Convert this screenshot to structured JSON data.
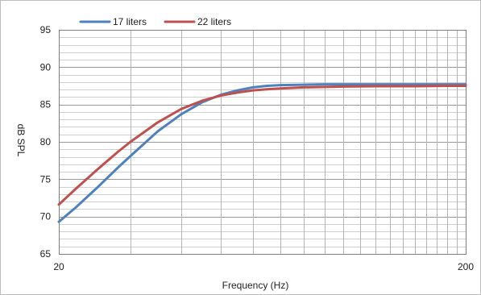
{
  "chart_data": {
    "type": "line",
    "xlabel": "Frequency (Hz)",
    "ylabel": "dB SPL",
    "x_scale": "log",
    "xlim": [
      20,
      200
    ],
    "ylim": [
      65,
      95
    ],
    "x_ticks": [
      "20",
      "200"
    ],
    "y_ticks": [
      "65",
      "70",
      "75",
      "80",
      "85",
      "90",
      "95"
    ],
    "grid": true,
    "legend_position": "top",
    "series": [
      {
        "name": "17 liters",
        "color": "#4F81BD",
        "x": [
          20,
          22,
          25,
          28,
          30,
          35,
          40,
          45,
          50,
          55,
          60,
          65,
          70,
          80,
          90,
          100,
          120,
          150,
          180,
          200
        ],
        "y": [
          69.3,
          71.2,
          74.0,
          76.6,
          78.1,
          81.4,
          83.7,
          85.3,
          86.3,
          86.9,
          87.3,
          87.5,
          87.6,
          87.65,
          87.7,
          87.7,
          87.7,
          87.7,
          87.7,
          87.7
        ]
      },
      {
        "name": "22 liters",
        "color": "#C0504D",
        "x": [
          20,
          22,
          25,
          28,
          30,
          35,
          40,
          45,
          50,
          55,
          60,
          65,
          70,
          80,
          90,
          100,
          120,
          150,
          180,
          200
        ],
        "y": [
          71.6,
          73.7,
          76.4,
          78.7,
          80.0,
          82.6,
          84.4,
          85.5,
          86.2,
          86.6,
          86.9,
          87.05,
          87.15,
          87.3,
          87.35,
          87.4,
          87.45,
          87.45,
          87.5,
          87.5
        ]
      }
    ]
  }
}
